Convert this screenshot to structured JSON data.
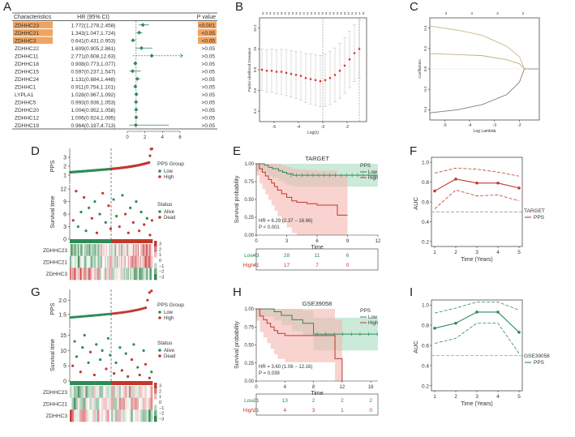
{
  "panel_labels": {
    "a": "A",
    "b": "B",
    "c": "C",
    "d": "D",
    "e": "E",
    "f": "F",
    "g": "G",
    "h": "H",
    "i": "I"
  },
  "colors": {
    "low": "#2e8b57",
    "high": "#c0392b",
    "highlight": "#f0a35e",
    "lowfill": "#a9dcc0",
    "highfill": "#f4b6b0"
  },
  "chart_data": [
    {
      "id": "A",
      "type": "table",
      "headers": [
        "Characteristics",
        "HR (95% CI)",
        "P value"
      ],
      "rows": [
        {
          "gene": "ZDHHC23",
          "hr_text": "1.772(1.278,2.458)",
          "p": "<0.001",
          "hr": 1.772,
          "lo": 1.278,
          "hi": 2.458,
          "hl": true
        },
        {
          "gene": "ZDHHC21",
          "hr_text": "1.343(1.047,1.724)",
          "p": "<0.05",
          "hr": 1.343,
          "lo": 1.047,
          "hi": 1.724,
          "hl": true
        },
        {
          "gene": "ZDHHC3",
          "hr_text": "0.641(0.431,0.953)",
          "p": "<0.05",
          "hr": 0.641,
          "lo": 0.431,
          "hi": 0.953,
          "hl": true
        },
        {
          "gene": "ZDHHC22",
          "hr_text": "1.609(0.905,2.861)",
          "p": ">0.05",
          "hr": 1.609,
          "lo": 0.905,
          "hi": 2.861,
          "hl": false
        },
        {
          "gene": "ZDHHC11",
          "hr_text": "2.771(0.608,12.63)",
          "p": ">0.05",
          "hr": 2.771,
          "lo": 0.608,
          "hi": 12.63,
          "hl": false
        },
        {
          "gene": "ZDHHC18",
          "hr_text": "0.908(0.773,1.077)",
          "p": ">0.05",
          "hr": 0.908,
          "lo": 0.773,
          "hi": 1.077,
          "hl": false
        },
        {
          "gene": "ZDHHC15",
          "hr_text": "0.597(0.237,1.547)",
          "p": ">0.05",
          "hr": 0.597,
          "lo": 0.237,
          "hi": 1.547,
          "hl": false
        },
        {
          "gene": "ZDHHC24",
          "hr_text": "1.131(0.884,1.448)",
          "p": ">0.05",
          "hr": 1.131,
          "lo": 0.884,
          "hi": 1.448,
          "hl": false
        },
        {
          "gene": "ZDHHC1",
          "hr_text": "0.911(0.754,1.101)",
          "p": ">0.05",
          "hr": 0.911,
          "lo": 0.754,
          "hi": 1.101,
          "hl": false
        },
        {
          "gene": "LYPLA1",
          "hr_text": "1.028(0.967,1.092)",
          "p": ">0.05",
          "hr": 1.028,
          "lo": 0.967,
          "hi": 1.092,
          "hl": false
        },
        {
          "gene": "ZDHHC5",
          "hr_text": "0.993(0.936,1.053)",
          "p": ">0.05",
          "hr": 0.993,
          "lo": 0.936,
          "hi": 1.053,
          "hl": false
        },
        {
          "gene": "ZDHHC20",
          "hr_text": "1.004(0.952,1.058)",
          "p": ">0.05",
          "hr": 1.004,
          "lo": 0.952,
          "hi": 1.058,
          "hl": false
        },
        {
          "gene": "ZDHHC12",
          "hr_text": "1.006(0.924,1.095)",
          "p": ">0.05",
          "hr": 1.006,
          "lo": 0.924,
          "hi": 1.095,
          "hl": false
        },
        {
          "gene": "ZDHHC19",
          "hr_text": "0.964(0.197,4.713)",
          "p": ">0.05",
          "hr": 0.964,
          "lo": 0.197,
          "hi": 4.713,
          "hl": false
        }
      ],
      "xticks": [
        0,
        2,
        4,
        6
      ],
      "xlim": [
        0,
        6
      ]
    },
    {
      "id": "B",
      "type": "scatter",
      "xlabel": "Log(λ)",
      "ylabel": "Partial Likelihood Deviance",
      "top_ticks": [
        "3",
        "3",
        "3",
        "3",
        "3",
        "3",
        "3",
        "3",
        "3",
        "3",
        "3",
        "3",
        "3",
        "3",
        "3",
        "3",
        "3",
        "3",
        "3",
        "3",
        "3",
        "3",
        "3",
        "3",
        "2",
        "2",
        "1",
        "0"
      ],
      "xticks": [
        -5,
        -4,
        -3,
        -2
      ],
      "yticks": [
        9.4,
        9.6,
        9.8,
        10.0,
        10.2
      ],
      "xlim": [
        -5.6,
        -1.2
      ],
      "ylim": [
        9.3,
        10.3
      ],
      "vlines": [
        -3.0,
        -1.5
      ],
      "points": [
        [
          -5.5,
          9.8
        ],
        [
          -5.3,
          9.79
        ],
        [
          -5.1,
          9.79
        ],
        [
          -4.9,
          9.78
        ],
        [
          -4.7,
          9.78
        ],
        [
          -4.5,
          9.77
        ],
        [
          -4.3,
          9.76
        ],
        [
          -4.1,
          9.75
        ],
        [
          -3.9,
          9.74
        ],
        [
          -3.7,
          9.72
        ],
        [
          -3.5,
          9.71
        ],
        [
          -3.3,
          9.7
        ],
        [
          -3.1,
          9.69
        ],
        [
          -2.9,
          9.7
        ],
        [
          -2.7,
          9.72
        ],
        [
          -2.5,
          9.75
        ],
        [
          -2.3,
          9.79
        ],
        [
          -2.1,
          9.84
        ],
        [
          -1.9,
          9.9
        ],
        [
          -1.7,
          9.96
        ],
        [
          -1.5,
          10.0
        ]
      ]
    },
    {
      "id": "C",
      "type": "line",
      "xlabel": "Log Lambda",
      "ylabel": "Coefficients",
      "top_ticks": [
        "3",
        "3",
        "3",
        "2"
      ],
      "xticks": [
        -5,
        -4,
        -3,
        -2
      ],
      "yticks": [
        -0.4,
        -0.2,
        0.0,
        0.2,
        0.4
      ],
      "xlim": [
        -5.6,
        -1.2
      ],
      "ylim": [
        -0.5,
        0.5
      ],
      "series": [
        {
          "name": "ZDHHC23",
          "color": "#c9b98a",
          "x": [
            -5.6,
            -4.5,
            -3.5,
            -2.5,
            -2.0,
            -1.8,
            -1.2
          ],
          "y": [
            0.42,
            0.38,
            0.33,
            0.22,
            0.12,
            0.0,
            0.0
          ]
        },
        {
          "name": "ZDHHC21",
          "color": "#bfb27a",
          "x": [
            -5.6,
            -4.5,
            -3.5,
            -2.5,
            -2.0,
            -1.8,
            -1.2
          ],
          "y": [
            0.15,
            0.14,
            0.13,
            0.09,
            0.05,
            0.0,
            0.0
          ]
        },
        {
          "name": "ZDHHC3",
          "color": "#8a7a6a",
          "x": [
            -5.6,
            -4.5,
            -3.5,
            -2.5,
            -2.0,
            -1.8,
            -1.2
          ],
          "y": [
            -0.43,
            -0.4,
            -0.35,
            -0.25,
            -0.13,
            0.0,
            0.0
          ]
        }
      ]
    },
    {
      "id": "D",
      "type": "scatter",
      "ylabel_top": "PPS",
      "yticks_top": [
        1,
        2,
        3
      ],
      "ylim_top": [
        0,
        4
      ],
      "ylabel_mid": "Survival time",
      "yticks_mid": [
        0,
        3,
        6,
        9,
        12
      ],
      "ylim_mid": [
        0,
        13
      ],
      "legend_group_title": "PPS Group",
      "legend_group": [
        "Low",
        "High"
      ],
      "legend_status_title": "Status",
      "legend_status": [
        "Alive",
        "Dead"
      ],
      "heatmap_rows": [
        "ZDHHC23",
        "ZDHHC21",
        "ZDHHC3"
      ],
      "scale_ticks": [
        "3",
        "2",
        "1",
        "0",
        "−1",
        "−2",
        "−3"
      ],
      "n": 84,
      "cut": 42,
      "mid_points": [
        [
          3,
          4.5,
          1
        ],
        [
          6,
          11.5,
          1
        ],
        [
          8,
          3,
          0
        ],
        [
          11,
          6.5,
          0
        ],
        [
          14,
          10,
          1
        ],
        [
          16,
          2,
          0
        ],
        [
          19,
          7.5,
          0
        ],
        [
          22,
          5,
          1
        ],
        [
          25,
          9,
          0
        ],
        [
          27,
          1.5,
          1
        ],
        [
          30,
          6,
          0
        ],
        [
          33,
          11,
          1
        ],
        [
          36,
          4,
          0
        ],
        [
          39,
          8,
          1
        ],
        [
          41,
          2.5,
          1
        ],
        [
          44,
          9.5,
          0
        ],
        [
          47,
          5.5,
          0
        ],
        [
          50,
          3,
          1
        ],
        [
          53,
          10.5,
          0
        ],
        [
          56,
          6,
          1
        ],
        [
          59,
          1.5,
          1
        ],
        [
          61,
          7.5,
          0
        ],
        [
          64,
          4,
          1
        ],
        [
          67,
          9,
          0
        ],
        [
          70,
          2,
          1
        ],
        [
          72,
          6.5,
          0
        ],
        [
          75,
          3.5,
          1
        ],
        [
          78,
          5,
          0
        ],
        [
          81,
          1,
          1
        ],
        [
          83,
          4.5,
          1
        ]
      ]
    },
    {
      "id": "E",
      "type": "line",
      "title": "TARGET",
      "xlabel": "Time",
      "ylabel": "Survival probability",
      "legend_title": "PPS",
      "legend": [
        "Low",
        "High"
      ],
      "stats": [
        "HR = 6.29 (2.37 − 16.66)",
        "P < 0.001"
      ],
      "xticks": [
        0,
        3,
        6,
        9,
        12
      ],
      "yticks": [
        "0.00",
        "0.25",
        "0.50",
        "0.75",
        "1.00"
      ],
      "xlim": [
        0,
        12
      ],
      "ylim": [
        0,
        1
      ],
      "low": {
        "x": [
          0,
          0.8,
          1.2,
          1.6,
          2.2,
          2.6,
          3.0,
          3.6,
          12
        ],
        "y": [
          1,
          0.98,
          0.95,
          0.93,
          0.9,
          0.88,
          0.86,
          0.84,
          0.84
        ]
      },
      "high": {
        "x": [
          0,
          0.3,
          0.6,
          0.9,
          1.2,
          1.5,
          1.8,
          2.1,
          2.5,
          3.0,
          3.5,
          4.0,
          5.0,
          6.0,
          7.5,
          8.0,
          9.0
        ],
        "y": [
          1,
          0.93,
          0.88,
          0.83,
          0.78,
          0.73,
          0.68,
          0.63,
          0.58,
          0.53,
          0.48,
          0.46,
          0.44,
          0.42,
          0.42,
          0.28,
          0.28
        ]
      },
      "risk_rows": [
        {
          "label": "Low",
          "values": [
            "43",
            "28",
            "11",
            "6"
          ]
        },
        {
          "label": "High",
          "values": [
            "41",
            "17",
            "7",
            "0"
          ]
        }
      ],
      "risk_times": [
        0,
        3,
        6,
        9
      ]
    },
    {
      "id": "F",
      "type": "line",
      "xlabel": "Time (Years)",
      "ylabel": "AUC",
      "xticks": [
        1,
        2,
        3,
        4,
        5
      ],
      "yticks": [
        "0.2",
        "0.4",
        "0.6",
        "0.8",
        "1.0"
      ],
      "xlim": [
        1,
        5
      ],
      "ylim": [
        0.15,
        1.05
      ],
      "legend_title": "TARGET",
      "legend": [
        "PPS"
      ],
      "auc": [
        0.71,
        0.83,
        0.79,
        0.79,
        0.74
      ],
      "upper": [
        0.89,
        0.94,
        0.93,
        0.9,
        0.86
      ],
      "lower": [
        0.53,
        0.72,
        0.66,
        0.67,
        0.61
      ],
      "ref": 0.5
    },
    {
      "id": "G",
      "type": "scatter",
      "ylabel_top": "PPS",
      "yticks_top": [
        "1.5",
        "2.0"
      ],
      "ylim_top": [
        1.0,
        2.4
      ],
      "ylabel_mid": "Survival time",
      "yticks_mid": [
        0,
        5,
        10,
        15
      ],
      "ylim_mid": [
        0,
        17
      ],
      "legend_group_title": "PPS Group",
      "legend_group": [
        "Low",
        "High"
      ],
      "legend_status_title": "Status",
      "legend_status": [
        "Alive",
        "Dead"
      ],
      "heatmap_rows": [
        "ZDHHC23",
        "ZDHHC21",
        "ZDHHC3"
      ],
      "scale_ticks": [
        "3",
        "2",
        "1",
        "0",
        "−1",
        "−2",
        "−3"
      ],
      "n": 42,
      "cut": 21,
      "mid_points": [
        [
          1,
          5,
          1
        ],
        [
          2,
          13,
          0
        ],
        [
          3,
          8,
          0
        ],
        [
          5,
          3,
          1
        ],
        [
          6,
          11,
          0
        ],
        [
          7,
          15,
          0
        ],
        [
          9,
          6,
          0
        ],
        [
          10,
          9.5,
          1
        ],
        [
          12,
          2,
          1
        ],
        [
          13,
          12,
          0
        ],
        [
          15,
          7,
          0
        ],
        [
          16,
          10,
          0
        ],
        [
          18,
          4,
          1
        ],
        [
          19,
          14,
          0
        ],
        [
          20,
          8.5,
          0
        ],
        [
          22,
          2.5,
          1
        ],
        [
          23,
          6,
          0
        ],
        [
          25,
          11,
          0
        ],
        [
          26,
          3.5,
          1
        ],
        [
          28,
          9,
          0
        ],
        [
          29,
          1.5,
          1
        ],
        [
          31,
          7,
          1
        ],
        [
          32,
          12,
          0
        ],
        [
          34,
          4.5,
          0
        ],
        [
          35,
          2,
          1
        ],
        [
          37,
          10,
          0
        ],
        [
          38,
          5.5,
          1
        ],
        [
          40,
          1,
          1
        ],
        [
          41,
          3,
          0
        ]
      ]
    },
    {
      "id": "H",
      "type": "line",
      "title": "GSE39058",
      "xlabel": "Time",
      "ylabel": "Survival probability",
      "legend_title": "PPS",
      "legend": [
        "Low",
        "High"
      ],
      "stats": [
        "HR = 3.60 (1.06 − 12.16)",
        "P = 0.039"
      ],
      "xticks": [
        0,
        4,
        8,
        12,
        16
      ],
      "yticks": [
        "0.00",
        "0.25",
        "0.50",
        "0.75",
        "1.00"
      ],
      "xlim": [
        0,
        17
      ],
      "ylim": [
        0,
        1
      ],
      "low": {
        "x": [
          0,
          2.5,
          3.5,
          5.0,
          6.5,
          8.0,
          17
        ],
        "y": [
          1,
          0.96,
          0.91,
          0.85,
          0.8,
          0.65,
          0.65
        ]
      },
      "high": {
        "x": [
          0,
          0.5,
          1.0,
          1.5,
          2.0,
          2.5,
          3.0,
          4.0,
          5.0,
          11.0,
          12.0
        ],
        "y": [
          1,
          0.9,
          0.85,
          0.8,
          0.75,
          0.7,
          0.66,
          0.63,
          0.63,
          0.31,
          0
        ]
      },
      "risk_rows": [
        {
          "label": "Low",
          "values": [
            "21",
            "13",
            "2",
            "2",
            "2"
          ]
        },
        {
          "label": "High",
          "values": [
            "21",
            "4",
            "3",
            "1",
            "0"
          ]
        }
      ],
      "risk_times": [
        0,
        4,
        8,
        12,
        16
      ]
    },
    {
      "id": "I",
      "type": "line",
      "xlabel": "Time (Years)",
      "ylabel": "AUC",
      "xticks": [
        1,
        2,
        3,
        4,
        5
      ],
      "yticks": [
        "0.2",
        "0.4",
        "0.6",
        "0.8",
        "1.0"
      ],
      "xlim": [
        1,
        5
      ],
      "ylim": [
        0.15,
        1.05
      ],
      "legend_title": "GSE39058",
      "legend": [
        "PPS"
      ],
      "auc": [
        0.77,
        0.82,
        0.93,
        0.93,
        0.73
      ],
      "upper": [
        0.92,
        0.97,
        1.03,
        1.03,
        0.95
      ],
      "lower": [
        0.62,
        0.67,
        0.82,
        0.82,
        0.52
      ],
      "ref": 0.5
    }
  ]
}
